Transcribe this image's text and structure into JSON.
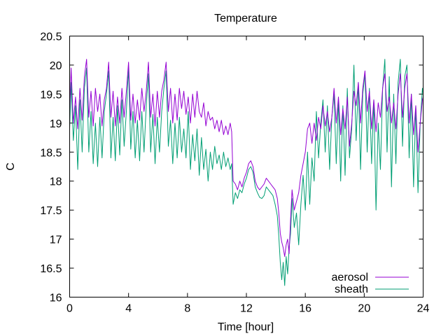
{
  "chart_data": {
    "type": "line",
    "title": "Temperature",
    "xlabel": "Time [hour]",
    "ylabel": "C",
    "xlim": [
      0,
      24
    ],
    "ylim": [
      16,
      20.5
    ],
    "xticks": [
      0,
      4,
      8,
      12,
      16,
      20,
      24
    ],
    "xtick_labels": [
      "0",
      "4",
      "8",
      "12",
      "16",
      "20",
      "24"
    ],
    "yticks": [
      16,
      16.5,
      17,
      17.5,
      18,
      18.5,
      19,
      19.5,
      20,
      20.5
    ],
    "ytick_labels": [
      "16",
      "16.5",
      "17",
      "17.5",
      "18",
      "18.5",
      "19",
      "19.5",
      "20",
      "20.5"
    ],
    "grid": false,
    "legend_position": "bottom-right",
    "series": [
      {
        "name": "aerosol",
        "color": "#9400d3",
        "x": [
          0,
          0.1,
          0.25,
          0.4,
          0.55,
          0.7,
          0.85,
          1.0,
          1.15,
          1.3,
          1.45,
          1.6,
          1.75,
          1.9,
          2.05,
          2.2,
          2.35,
          2.5,
          2.65,
          2.8,
          2.95,
          3.1,
          3.25,
          3.4,
          3.55,
          3.7,
          3.85,
          4.0,
          4.15,
          4.3,
          4.45,
          4.6,
          4.75,
          4.9,
          5.05,
          5.2,
          5.35,
          5.5,
          5.65,
          5.8,
          5.95,
          6.1,
          6.25,
          6.4,
          6.55,
          6.7,
          6.85,
          7.0,
          7.15,
          7.3,
          7.45,
          7.6,
          7.75,
          7.9,
          8.05,
          8.2,
          8.35,
          8.5,
          8.65,
          8.8,
          8.95,
          9.1,
          9.25,
          9.4,
          9.55,
          9.7,
          9.85,
          10.0,
          10.15,
          10.3,
          10.45,
          10.6,
          10.75,
          10.9,
          11.0,
          11.1,
          11.25,
          11.4,
          11.55,
          11.7,
          11.85,
          12.0,
          12.15,
          12.3,
          12.45,
          12.6,
          12.75,
          12.9,
          13.05,
          13.2,
          13.35,
          13.5,
          13.65,
          13.8,
          13.95,
          14.1,
          14.2,
          14.3,
          14.4,
          14.5,
          14.6,
          14.7,
          14.8,
          14.9,
          15.0,
          15.1,
          15.25,
          15.4,
          15.55,
          15.7,
          15.85,
          16.0,
          16.15,
          16.3,
          16.45,
          16.6,
          16.75,
          16.9,
          17.05,
          17.2,
          17.35,
          17.5,
          17.65,
          17.8,
          17.95,
          18.1,
          18.25,
          18.4,
          18.55,
          18.7,
          18.85,
          19.0,
          19.15,
          19.3,
          19.45,
          19.6,
          19.75,
          19.9,
          20.05,
          20.2,
          20.35,
          20.5,
          20.65,
          20.8,
          20.95,
          21.1,
          21.25,
          21.4,
          21.55,
          21.7,
          21.85,
          22.0,
          22.15,
          22.3,
          22.45,
          22.6,
          22.75,
          22.9,
          23.05,
          23.2,
          23.35,
          23.5,
          23.65,
          23.8,
          23.95,
          24.0
        ],
        "y": [
          19.2,
          19.95,
          19.0,
          19.45,
          18.9,
          19.6,
          19.05,
          19.8,
          20.1,
          19.1,
          19.55,
          18.95,
          19.6,
          19.2,
          19.5,
          18.95,
          19.4,
          19.6,
          20.05,
          19.1,
          19.55,
          18.95,
          19.45,
          19.0,
          19.6,
          19.1,
          19.55,
          20.05,
          19.05,
          19.5,
          19.0,
          19.4,
          19.05,
          19.6,
          19.2,
          19.55,
          20.05,
          19.1,
          19.5,
          18.95,
          19.55,
          19.1,
          19.55,
          19.75,
          20.05,
          19.2,
          19.6,
          19.0,
          19.5,
          19.05,
          19.6,
          19.25,
          19.55,
          19.15,
          19.45,
          19.0,
          19.5,
          19.1,
          19.55,
          19.2,
          19.1,
          19.35,
          18.95,
          19.2,
          19.05,
          19.1,
          18.9,
          19.05,
          18.85,
          19.05,
          18.8,
          18.95,
          18.8,
          19.0,
          18.85,
          18.0,
          17.95,
          17.85,
          18.0,
          17.9,
          18.05,
          18.15,
          18.3,
          18.35,
          18.25,
          18.0,
          17.9,
          17.85,
          17.9,
          17.95,
          18.05,
          18.0,
          17.95,
          17.9,
          17.85,
          17.7,
          17.45,
          17.1,
          16.95,
          16.85,
          16.7,
          16.9,
          17.0,
          16.75,
          17.35,
          17.85,
          17.5,
          17.65,
          17.8,
          18.1,
          18.3,
          18.5,
          18.9,
          19.0,
          18.65,
          19.0,
          18.7,
          19.1,
          18.9,
          19.3,
          18.95,
          19.2,
          18.85,
          19.1,
          19.6,
          19.0,
          19.45,
          18.8,
          19.25,
          18.9,
          19.45,
          18.6,
          19.0,
          19.55,
          19.3,
          19.7,
          19.0,
          19.6,
          19.9,
          19.2,
          19.55,
          18.9,
          19.4,
          18.85,
          19.35,
          19.1,
          19.6,
          19.85,
          19.2,
          19.45,
          19.0,
          19.35,
          18.9,
          19.5,
          19.85,
          19.1,
          19.6,
          19.85,
          19.0,
          19.5,
          18.8,
          19.3,
          18.5,
          19.0,
          19.4,
          19.45
        ]
      },
      {
        "name": "sheath",
        "color": "#009e73",
        "x": [
          0,
          0.1,
          0.25,
          0.4,
          0.55,
          0.7,
          0.85,
          1.0,
          1.15,
          1.3,
          1.45,
          1.6,
          1.75,
          1.9,
          2.05,
          2.2,
          2.35,
          2.5,
          2.65,
          2.8,
          2.95,
          3.1,
          3.25,
          3.4,
          3.55,
          3.7,
          3.85,
          4.0,
          4.15,
          4.3,
          4.45,
          4.6,
          4.75,
          4.9,
          5.05,
          5.2,
          5.35,
          5.5,
          5.65,
          5.8,
          5.95,
          6.1,
          6.25,
          6.4,
          6.55,
          6.7,
          6.85,
          7.0,
          7.15,
          7.3,
          7.45,
          7.6,
          7.75,
          7.9,
          8.05,
          8.2,
          8.35,
          8.5,
          8.65,
          8.8,
          8.95,
          9.1,
          9.25,
          9.4,
          9.55,
          9.7,
          9.85,
          10.0,
          10.15,
          10.3,
          10.45,
          10.6,
          10.75,
          10.9,
          11.0,
          11.1,
          11.25,
          11.4,
          11.55,
          11.7,
          11.85,
          12.0,
          12.15,
          12.3,
          12.45,
          12.6,
          12.75,
          12.9,
          13.05,
          13.2,
          13.35,
          13.5,
          13.65,
          13.8,
          13.95,
          14.1,
          14.2,
          14.3,
          14.4,
          14.5,
          14.6,
          14.7,
          14.8,
          14.9,
          15.0,
          15.1,
          15.25,
          15.4,
          15.55,
          15.7,
          15.85,
          16.0,
          16.15,
          16.3,
          16.45,
          16.6,
          16.75,
          16.9,
          17.05,
          17.2,
          17.35,
          17.5,
          17.65,
          17.8,
          17.95,
          18.1,
          18.25,
          18.4,
          18.55,
          18.7,
          18.85,
          19.0,
          19.15,
          19.3,
          19.45,
          19.6,
          19.75,
          19.9,
          20.05,
          20.2,
          20.35,
          20.5,
          20.65,
          20.8,
          20.95,
          21.1,
          21.25,
          21.4,
          21.55,
          21.7,
          21.85,
          22.0,
          22.15,
          22.3,
          22.45,
          22.6,
          22.75,
          22.9,
          23.05,
          23.2,
          23.35,
          23.5,
          23.65,
          23.8,
          23.95,
          24.0
        ],
        "y": [
          18.9,
          19.7,
          18.7,
          19.3,
          18.2,
          19.4,
          18.5,
          19.6,
          19.95,
          18.5,
          19.2,
          18.3,
          19.0,
          18.25,
          19.1,
          18.4,
          19.2,
          19.5,
          19.9,
          18.4,
          19.1,
          18.35,
          19.3,
          18.45,
          19.4,
          18.6,
          19.2,
          19.95,
          18.55,
          19.2,
          18.4,
          19.05,
          18.35,
          19.2,
          18.5,
          19.3,
          19.85,
          18.5,
          19.15,
          18.3,
          19.1,
          18.5,
          19.2,
          19.6,
          19.9,
          18.6,
          19.05,
          18.3,
          19.0,
          18.4,
          19.1,
          18.5,
          18.9,
          18.4,
          19.2,
          18.2,
          18.8,
          18.35,
          18.9,
          18.1,
          18.75,
          18.2,
          18.55,
          18.0,
          18.5,
          18.2,
          18.6,
          18.3,
          18.45,
          18.2,
          18.5,
          18.25,
          18.4,
          18.2,
          18.3,
          17.6,
          17.8,
          17.7,
          17.85,
          17.8,
          17.95,
          18.05,
          18.2,
          18.25,
          18.15,
          17.9,
          17.8,
          17.72,
          17.7,
          17.75,
          17.9,
          17.85,
          17.8,
          17.75,
          17.6,
          17.4,
          17.05,
          16.6,
          16.3,
          16.6,
          16.2,
          16.7,
          16.4,
          16.85,
          17.1,
          17.7,
          17.2,
          17.45,
          16.9,
          17.6,
          18.1,
          17.5,
          18.5,
          17.6,
          18.4,
          18.0,
          19.2,
          18.4,
          19.0,
          19.4,
          18.5,
          19.3,
          18.2,
          19.1,
          19.5,
          18.3,
          19.4,
          18.0,
          19.3,
          18.1,
          19.6,
          18.4,
          18.9,
          20.0,
          18.7,
          19.7,
          18.2,
          19.5,
          19.85,
          18.5,
          19.6,
          18.3,
          19.4,
          17.5,
          19.0,
          18.2,
          19.6,
          20.1,
          18.5,
          19.8,
          17.9,
          19.5,
          18.3,
          19.7,
          20.1,
          18.6,
          19.8,
          20.0,
          18.4,
          19.5,
          17.9,
          19.3,
          17.8,
          19.0,
          19.6,
          19.5
        ]
      }
    ]
  }
}
